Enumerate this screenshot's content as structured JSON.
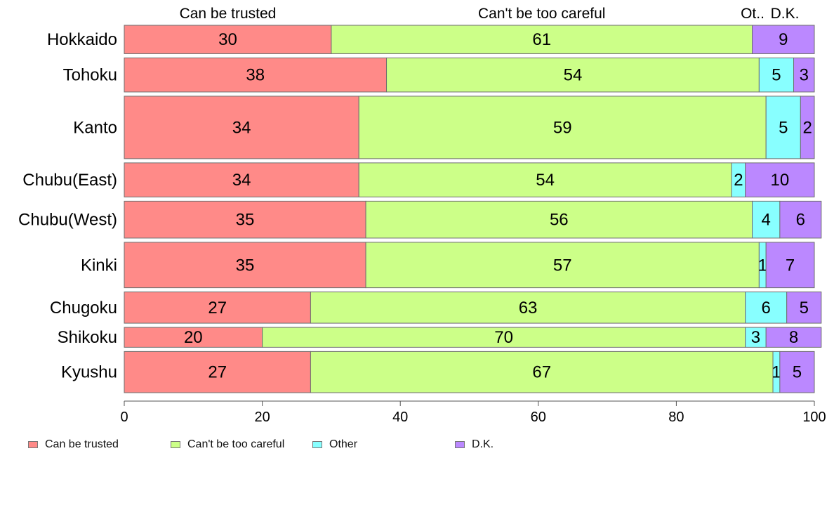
{
  "chart_data": {
    "type": "bar",
    "orientation": "horizontal",
    "stacked": true,
    "categories": [
      "Hokkaido",
      "Tohoku",
      "Kanto",
      "Chubu(East)",
      "Chubu(West)",
      "Kinki",
      "Chugoku",
      "Shikoku",
      "Kyushu"
    ],
    "series": [
      {
        "name": "Can be trusted",
        "color": "#ff8a88",
        "values": [
          30,
          38,
          34,
          34,
          35,
          35,
          27,
          20,
          27
        ]
      },
      {
        "name": "Can't be too careful",
        "color": "#ccff88",
        "values": [
          61,
          54,
          59,
          54,
          56,
          57,
          63,
          70,
          67
        ]
      },
      {
        "name": "Other",
        "color": "#88ffff",
        "values": [
          0,
          5,
          5,
          2,
          4,
          1,
          6,
          3,
          1
        ]
      },
      {
        "name": "D.K.",
        "color": "#bb88ff",
        "values": [
          9,
          3,
          2,
          10,
          6,
          7,
          5,
          8,
          5
        ]
      }
    ],
    "top_labels": [
      "Can be trusted",
      "Can't be too careful",
      "Ot..",
      "D.K."
    ],
    "row_weights": [
      1.0,
      1.2,
      2.2,
      1.2,
      1.3,
      1.6,
      1.1,
      0.7,
      1.45
    ],
    "xlim": [
      0,
      100
    ],
    "xticks": [
      0,
      20,
      40,
      60,
      80,
      100
    ],
    "grid": false,
    "legend_position": "bottom-left"
  }
}
